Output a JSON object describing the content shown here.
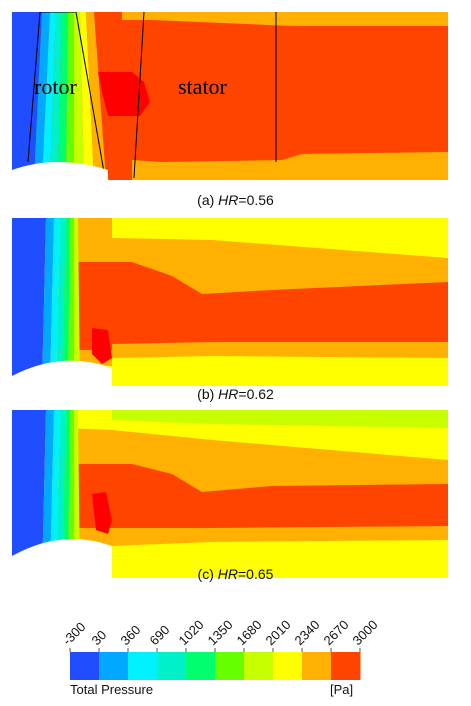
{
  "panels": [
    {
      "id": "a",
      "caption_prefix": "(a) ",
      "caption_var": "HR",
      "caption_suffix": "=0.56",
      "labels": {
        "rotor": "rotor",
        "stator": "stator"
      }
    },
    {
      "id": "b",
      "caption_prefix": "(b) ",
      "caption_var": "HR",
      "caption_suffix": "=0.62"
    },
    {
      "id": "c",
      "caption_prefix": "(c) ",
      "caption_var": "HR",
      "caption_suffix": "=0.65"
    }
  ],
  "legend": {
    "title": "Total Pressure",
    "unit": "[Pa]",
    "ticks": [
      "-300",
      "30",
      "360",
      "690",
      "1020",
      "1350",
      "1680",
      "2010",
      "2340",
      "2670",
      "3000"
    ],
    "colors": [
      "#1f4dff",
      "#00a8ff",
      "#00f0ff",
      "#00f0c8",
      "#00ff6e",
      "#66ff00",
      "#c8ff00",
      "#ffff00",
      "#ffb000",
      "#ff4400"
    ]
  },
  "colors": {
    "blue": "#1f4dff",
    "lightblue": "#00a8ff",
    "cyan": "#00f0ff",
    "teal": "#00f0c8",
    "green": "#00ff6e",
    "lime": "#66ff00",
    "yellowgreen": "#c8ff00",
    "yellow": "#ffff00",
    "orange": "#ffb000",
    "redorange": "#ff4400",
    "red": "#ff0000"
  }
}
